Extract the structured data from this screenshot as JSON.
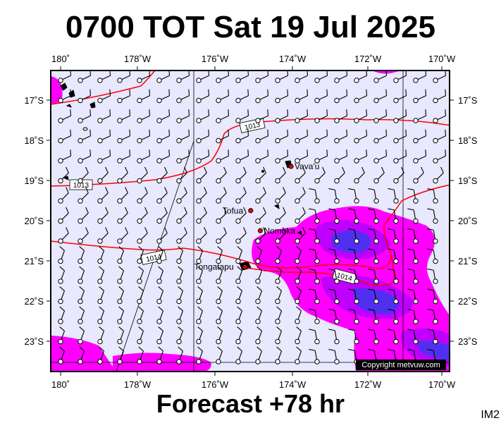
{
  "title": "0700 TOT Sat 19 Jul 2025",
  "forecast_label": "Forecast +78 hr",
  "image_code": "IM2",
  "copyright": "Copyright metvuw.com",
  "lon_labels": [
    "180˚",
    "178˚W",
    "176˚W",
    "174˚W",
    "172˚W",
    "170˚W"
  ],
  "lat_labels": [
    "17˚S",
    "18˚S",
    "19˚S",
    "20˚S",
    "21˚S",
    "22˚S",
    "23˚S"
  ],
  "places": [
    {
      "name": "Vava'u",
      "lon": -174.0,
      "lat": -18.65
    },
    {
      "name": "Tofua",
      "lon": -175.05,
      "lat": -19.75
    },
    {
      "name": "Nomuka",
      "lon": -174.8,
      "lat": -20.25
    },
    {
      "name": "Tongatapu",
      "lon": -175.2,
      "lat": -21.15
    }
  ],
  "isobars": [
    {
      "label": "1013"
    },
    {
      "label": "1013"
    },
    {
      "label": "1014"
    },
    {
      "label": "1014"
    }
  ],
  "colors": {
    "background": "#e8e8ff",
    "rain_light": "#ff00ff",
    "rain_medium": "#c000ff",
    "rain_heavy": "#5030f0",
    "isobar": "#ff0000"
  }
}
